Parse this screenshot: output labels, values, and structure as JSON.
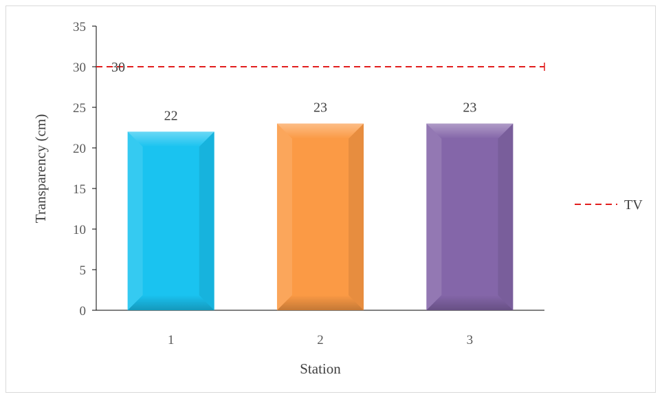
{
  "chart_data": {
    "type": "bar",
    "title": "",
    "xlabel": "Station",
    "ylabel": "Transparency (cm)",
    "categories": [
      "1",
      "2",
      "3"
    ],
    "values": [
      22,
      23,
      23
    ],
    "data_labels": [
      "22",
      "23",
      "23"
    ],
    "ylim": [
      0,
      35
    ],
    "yticks": [
      0,
      5,
      10,
      15,
      20,
      25,
      30,
      35
    ],
    "grid": false,
    "bar_colors": [
      "#1ac3f0",
      "#fb9a45",
      "#8466a9"
    ],
    "reference_line": {
      "name": "TV",
      "value": 30,
      "label": "30",
      "color": "#e11d1d",
      "style": "dashed"
    },
    "legend": {
      "placement": "right",
      "entries": [
        "TV"
      ]
    }
  }
}
